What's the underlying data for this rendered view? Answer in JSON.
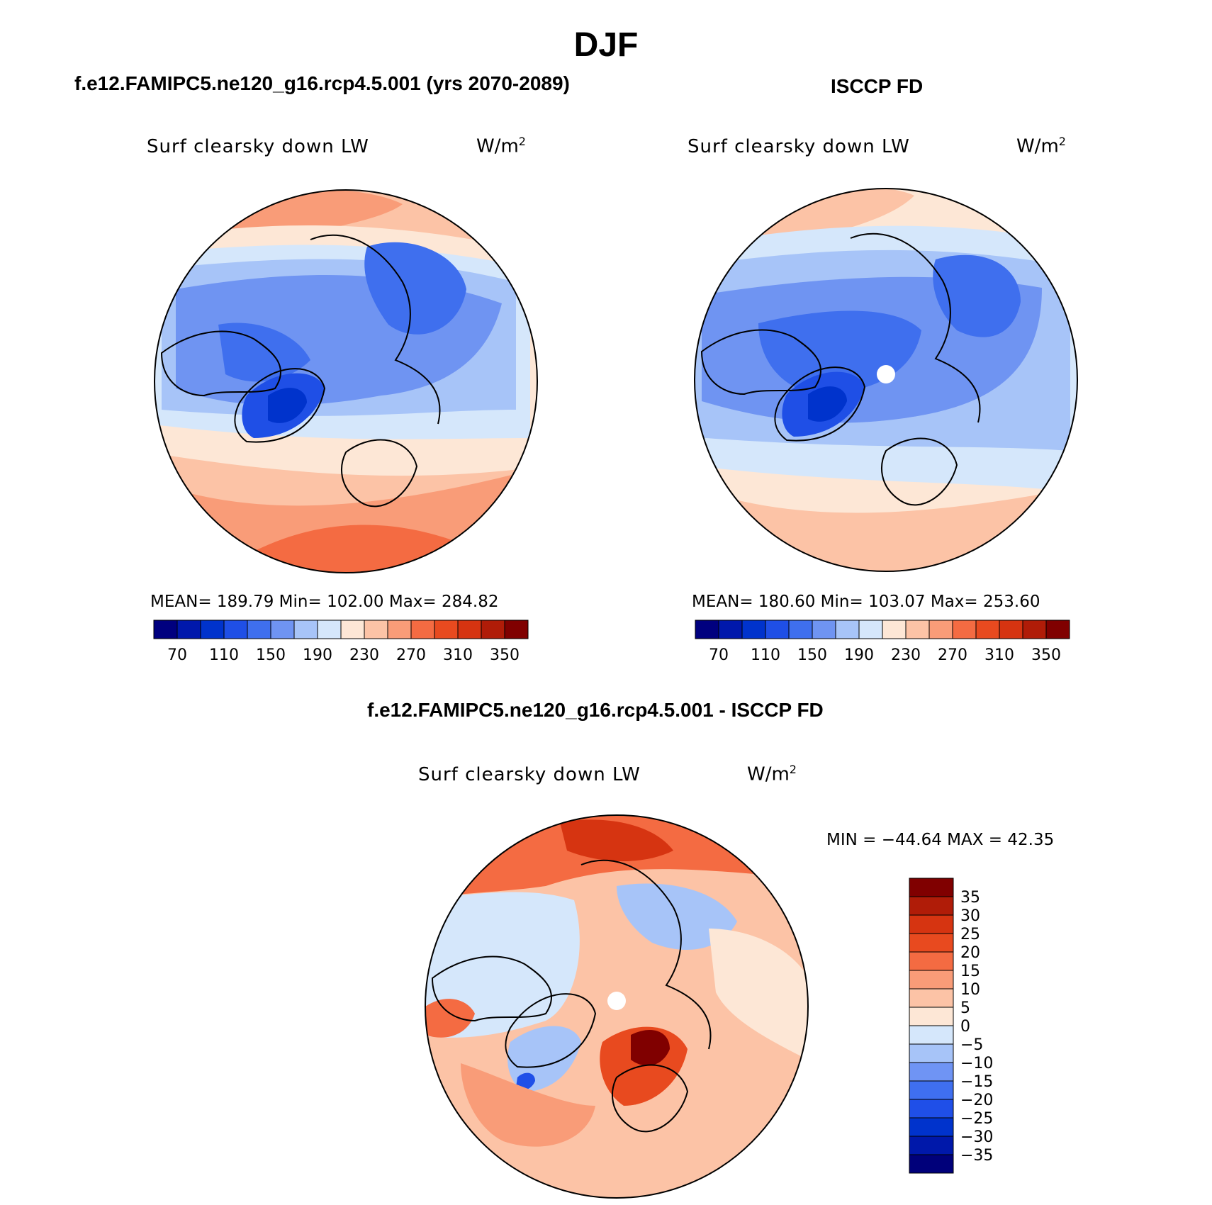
{
  "title": "DJF",
  "colors": {
    "abs_scale": [
      "#00007f",
      "#0018ac",
      "#0033cc",
      "#1f4fe6",
      "#3f6fee",
      "#6f94f2",
      "#a7c4f8",
      "#d5e7fb",
      "#fde7d6",
      "#fcc3a6",
      "#f99c78",
      "#f46b42",
      "#e84a1f",
      "#d63411",
      "#b01c08",
      "#800000"
    ],
    "diff_scale": [
      "#00007a",
      "#0018aa",
      "#0033cc",
      "#1f4fe8",
      "#3f6ff0",
      "#6f94f4",
      "#a7c4f8",
      "#d5e7fb",
      "#fde7d6",
      "#fcc3a6",
      "#f99c78",
      "#f46b42",
      "#e84a1f",
      "#d63411",
      "#b01c08",
      "#800000"
    ]
  },
  "panels": [
    {
      "title": "f.e12.FAMIPC5.ne120_g16.rcp4.5.001 (yrs 2070-2089)",
      "field_label": "Surf clearsky down LW",
      "units_base": "W/m",
      "units_exp": "2",
      "stats": "MEAN= 189.79   Min= 102.00   Max= 284.82"
    },
    {
      "title": "ISCCP FD",
      "field_label": "Surf clearsky down LW",
      "units_base": "W/m",
      "units_exp": "2",
      "stats": "MEAN= 180.60   Min= 103.07   Max= 253.60"
    },
    {
      "title": "f.e12.FAMIPC5.ne120_g16.rcp4.5.001 - ISCCP FD",
      "field_label": "Surf clearsky down LW",
      "units_base": "W/m",
      "units_exp": "2",
      "stats": "MIN = −44.64 MAX =   42.35"
    }
  ],
  "chart_data": [
    {
      "type": "heatmap",
      "projection": "north polar stereographic",
      "title": "f.e12.FAMIPC5.ne120_g16.rcp4.5.001 (yrs 2070-2089)",
      "variable": "Surf clearsky down LW",
      "units": "W/m2",
      "mean": 189.79,
      "min": 102.0,
      "max": 284.82,
      "colorbar_ticks": [
        "70",
        "110",
        "150",
        "190",
        "230",
        "270",
        "310",
        "350"
      ],
      "colorbar_levels": [
        70,
        90,
        110,
        130,
        150,
        170,
        190,
        210,
        230,
        250,
        270,
        290,
        310,
        330,
        350
      ]
    },
    {
      "type": "heatmap",
      "projection": "north polar stereographic",
      "title": "ISCCP FD",
      "variable": "Surf clearsky down LW",
      "units": "W/m2",
      "mean": 180.6,
      "min": 103.07,
      "max": 253.6,
      "colorbar_ticks": [
        "70",
        "110",
        "150",
        "190",
        "230",
        "270",
        "310",
        "350"
      ],
      "colorbar_levels": [
        70,
        90,
        110,
        130,
        150,
        170,
        190,
        210,
        230,
        250,
        270,
        290,
        310,
        330,
        350
      ]
    },
    {
      "type": "heatmap",
      "projection": "north polar stereographic",
      "title": "f.e12.FAMIPC5.ne120_g16.rcp4.5.001 - ISCCP FD",
      "variable": "Surf clearsky down LW",
      "units": "W/m2",
      "min": -44.64,
      "max": 42.35,
      "colorbar_ticks": [
        "35",
        "30",
        "25",
        "20",
        "15",
        "10",
        "5",
        "0",
        "−5",
        "−10",
        "−15",
        "−20",
        "−25",
        "−30",
        "−35"
      ],
      "colorbar_levels": [
        35,
        30,
        25,
        20,
        15,
        10,
        5,
        0,
        -5,
        -10,
        -15,
        -20,
        -25,
        -30,
        -35
      ]
    }
  ]
}
